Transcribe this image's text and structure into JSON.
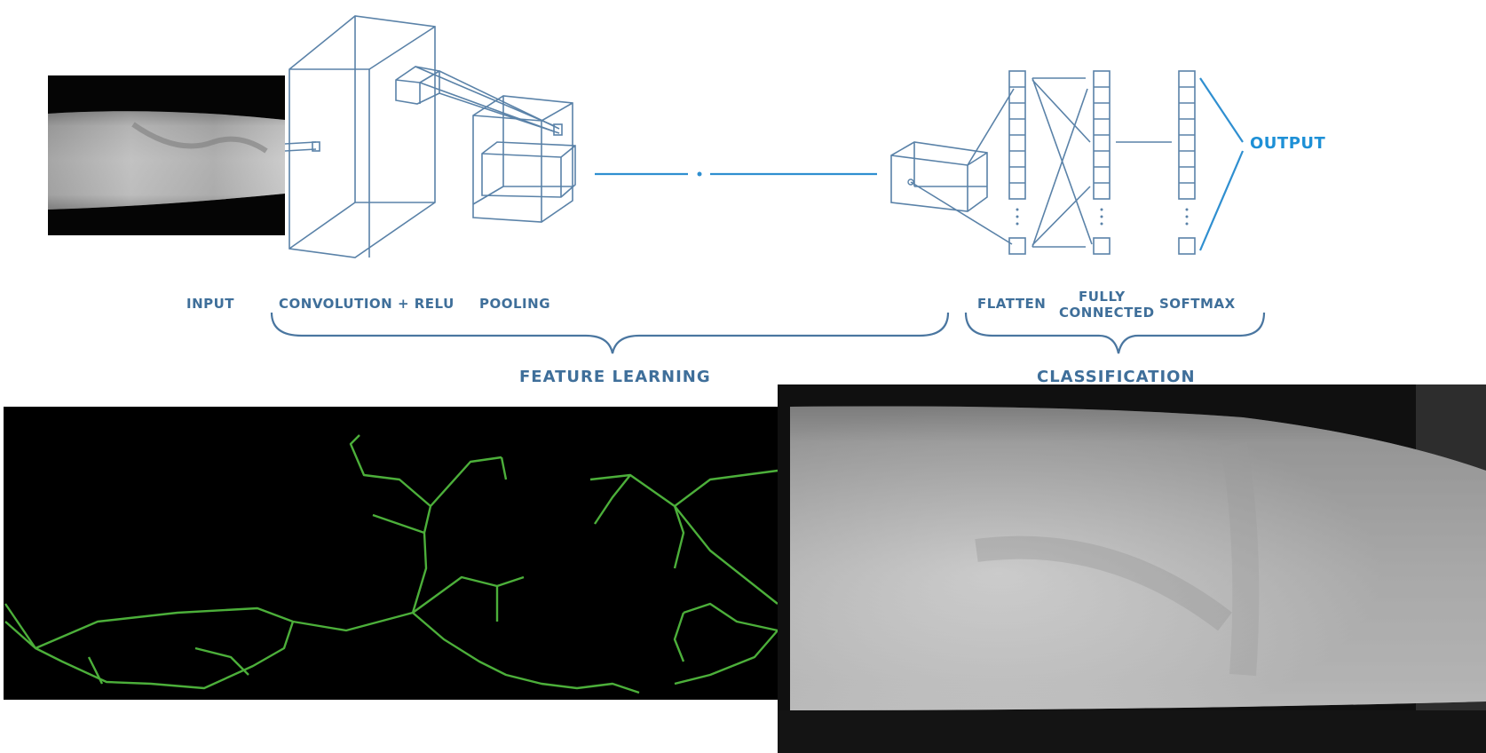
{
  "labels": {
    "input": "INPUT",
    "conv_relu": "CONVOLUTION + RELU",
    "pooling": "POOLING",
    "flatten": "FLATTEN",
    "fully_connected_1": "FULLY",
    "fully_connected_2": "CONNECTED",
    "softmax": "SOFTMAX",
    "output": "OUTPUT",
    "feature_learning": "FEATURE LEARNING",
    "classification": "CLASSIFICATION"
  },
  "colors": {
    "label": "#3f6f9a",
    "accent": "#2f8fd0",
    "vein_lines": "#4caf3a",
    "image_background": "#000000"
  }
}
